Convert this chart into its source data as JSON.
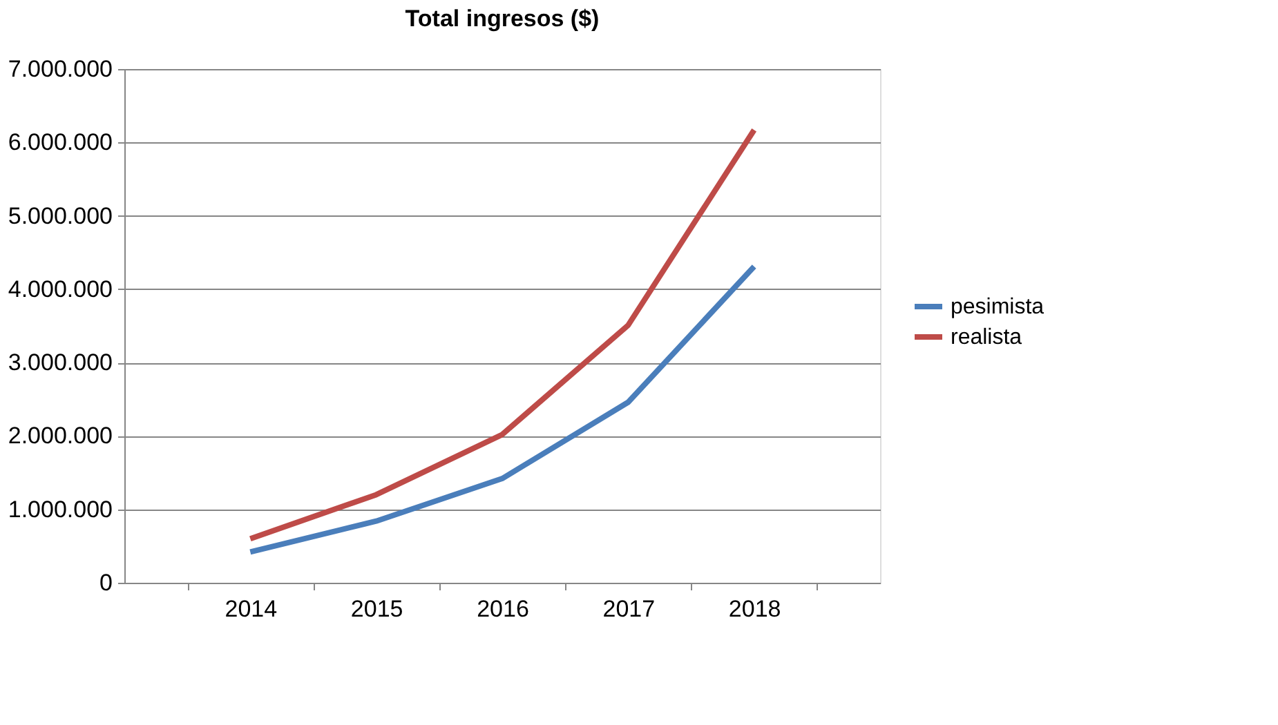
{
  "chart_data": {
    "type": "line",
    "title": "Total ingresos ($)",
    "categories": [
      "2014",
      "2015",
      "2016",
      "2017",
      "2018"
    ],
    "series": [
      {
        "name": "pesimista",
        "color": "#4a7ebb",
        "values": [
          420000,
          840000,
          1420000,
          2460000,
          4310000
        ]
      },
      {
        "name": "realista",
        "color": "#be4b48",
        "values": [
          600000,
          1200000,
          2020000,
          3510000,
          6170000
        ]
      }
    ],
    "ylim": [
      0,
      7000000
    ],
    "yticks": [
      0,
      {
        "value": 1000000,
        "label": "1.000.000"
      },
      {
        "value": 2000000,
        "label": "2.000.000"
      },
      {
        "value": 3000000,
        "label": "3.000.000"
      },
      {
        "value": 4000000,
        "label": "4.000.000"
      },
      {
        "value": 5000000,
        "label": "5.000.000"
      },
      {
        "value": 6000000,
        "label": "6.000.000"
      },
      {
        "value": 7000000,
        "label": "7.000.000"
      }
    ],
    "grid": "y",
    "legend": "right",
    "marker": "none",
    "line_style": "solid"
  }
}
